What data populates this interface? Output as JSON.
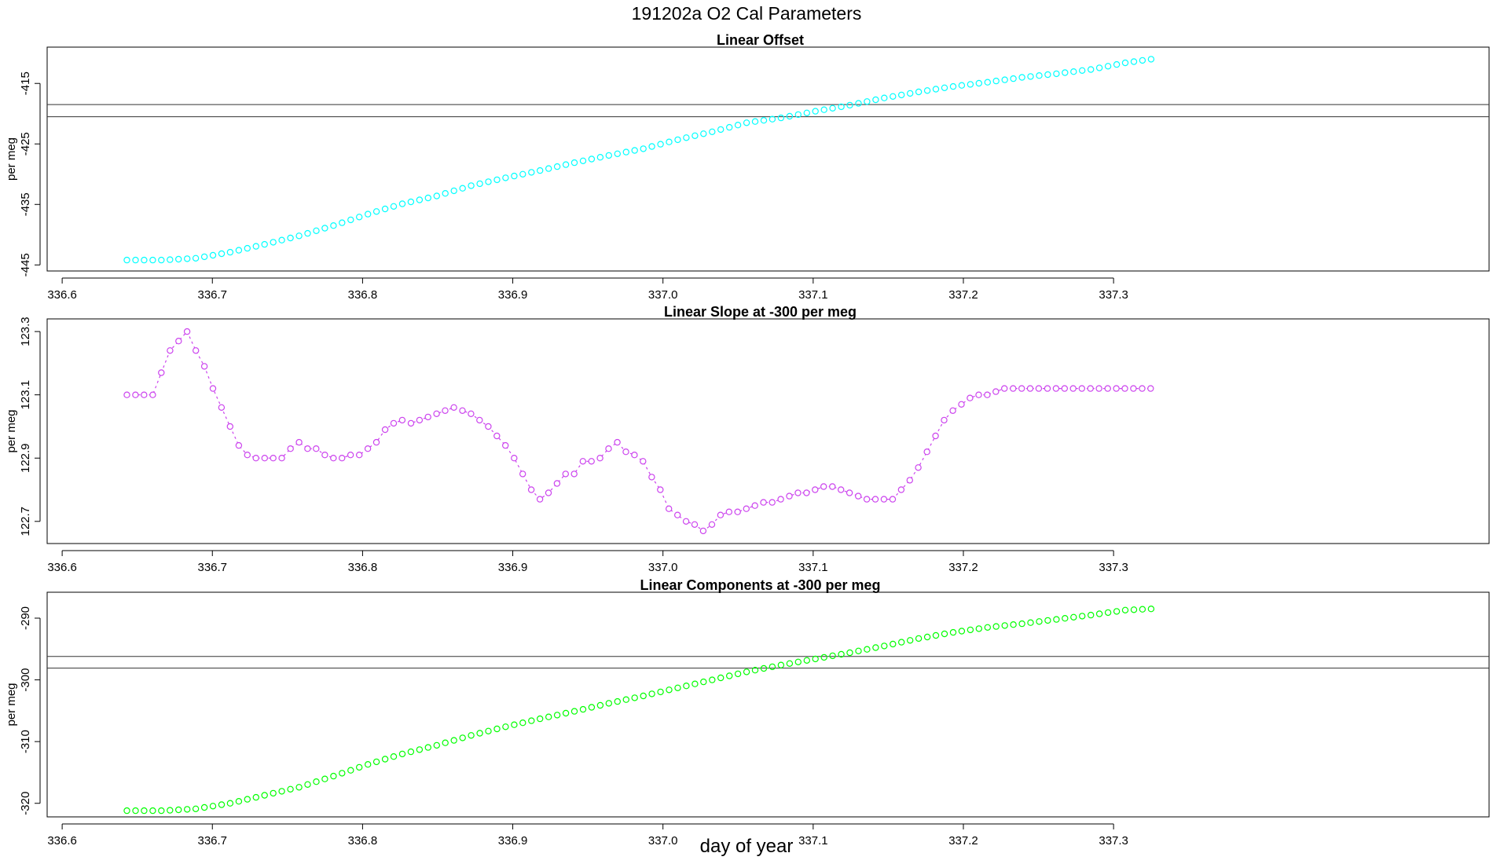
{
  "figure": {
    "title": "191202a   O2 Cal Parameters",
    "xlabel": "day of year"
  },
  "chart_data": [
    {
      "type": "scatter",
      "id": "offset",
      "title": "Linear Offset",
      "xlabel": "",
      "ylabel": "per meg",
      "color": "#00ffff",
      "connect_points": false,
      "xlim": [
        336.59,
        337.55
      ],
      "ylim": [
        -446,
        -409
      ],
      "xticks": [
        336.6,
        336.7,
        336.8,
        336.9,
        337.0,
        337.1,
        337.2,
        337.3
      ],
      "xtick_labels": [
        "336.6",
        "336.7",
        "336.8",
        "336.9",
        "337.0",
        "337.1",
        "337.2",
        "337.3"
      ],
      "yticks": [
        -445,
        -435,
        -425,
        -415
      ],
      "ytick_labels": [
        "-445",
        "-435",
        "-425",
        "-415"
      ],
      "hlines": [
        -418.5,
        -420.5
      ],
      "x_start": 336.6431,
      "x_step": 0.00573,
      "n_points": 120,
      "key_x": [
        0,
        4,
        8,
        12,
        16,
        20,
        24,
        28,
        32,
        36,
        40,
        44,
        48,
        52,
        56,
        60,
        64,
        68,
        72,
        76,
        80,
        84,
        88,
        92,
        96,
        100,
        104,
        108,
        112,
        116,
        119
      ],
      "key_y": [
        -444.2,
        -444.2,
        -443.9,
        -442.9,
        -441.6,
        -440.2,
        -438.5,
        -436.6,
        -434.9,
        -433.6,
        -431.9,
        -430.6,
        -429.4,
        -428.1,
        -426.9,
        -425.8,
        -424.3,
        -423.0,
        -421.5,
        -420.7,
        -419.6,
        -418.6,
        -417.4,
        -416.4,
        -415.5,
        -414.8,
        -414.0,
        -413.4,
        -412.7,
        -411.6,
        -411.0
      ]
    },
    {
      "type": "line",
      "id": "slope",
      "title": "Linear Slope at -300 per meg",
      "xlabel": "",
      "ylabel": "per meg",
      "color": "#cc44ee",
      "connect_points": true,
      "xlim": [
        336.59,
        337.55
      ],
      "ylim": [
        122.63,
        123.34
      ],
      "xticks": [
        336.6,
        336.7,
        336.8,
        336.9,
        337.0,
        337.1,
        337.2,
        337.3
      ],
      "xtick_labels": [
        "336.6",
        "336.7",
        "336.8",
        "336.9",
        "337.0",
        "337.1",
        "337.2",
        "337.3"
      ],
      "yticks": [
        122.7,
        122.9,
        123.1,
        123.3
      ],
      "ytick_labels": [
        "122.7",
        "122.9",
        "123.1",
        "123.3"
      ],
      "x": [
        336.6431,
        336.6488,
        336.6545,
        336.6603,
        336.666,
        336.6718,
        336.6775,
        336.6832,
        336.689,
        336.6947,
        336.7004,
        336.7061,
        336.7118,
        336.7176,
        336.7233,
        336.729,
        336.7348,
        336.7405,
        336.7462,
        336.752,
        336.7577,
        336.7634,
        336.7691,
        336.7749,
        336.7806,
        336.7863,
        336.792,
        336.7978,
        336.8035,
        336.8092,
        336.815,
        336.8207,
        336.8264,
        336.8322,
        336.8379,
        336.8436,
        336.8493,
        336.855,
        336.8608,
        336.8665,
        336.8722,
        336.8779,
        336.8837,
        336.8894,
        336.8951,
        336.9009,
        336.9066,
        336.9123,
        336.9181,
        336.9238,
        336.9295,
        336.9352,
        336.9409,
        336.9467,
        336.9524,
        336.9581,
        336.9638,
        336.9696,
        336.9753,
        336.981,
        336.9867,
        336.9925,
        336.9982,
        337.0039,
        337.0097,
        337.0154,
        337.0211,
        337.0268,
        337.0326,
        337.0383,
        337.044,
        337.0497,
        337.0555,
        337.0612,
        337.0669,
        337.0727,
        337.0784,
        337.0841,
        337.0899,
        337.0956,
        337.1013,
        337.107,
        337.1128,
        337.1185,
        337.1242,
        337.13,
        337.1357,
        337.1414,
        337.1471,
        337.1529,
        337.1586,
        337.1643,
        337.17,
        337.1758,
        337.1815,
        337.1872,
        337.193,
        337.1987,
        337.2044,
        337.2102,
        337.2159,
        337.2216,
        337.2273,
        337.2331,
        337.2388,
        337.2445,
        337.2502,
        337.256,
        337.2617,
        337.2674,
        337.2731,
        337.2789,
        337.2846,
        337.2903,
        337.2961,
        337.3018,
        337.3075,
        337.3132,
        337.319,
        337.3247
      ],
      "y": [
        123.1,
        123.1,
        123.1,
        123.1,
        123.17,
        123.24,
        123.27,
        123.3,
        123.24,
        123.19,
        123.12,
        123.06,
        123.0,
        122.94,
        122.91,
        122.9,
        122.9,
        122.9,
        122.9,
        122.93,
        122.95,
        122.93,
        122.93,
        122.91,
        122.9,
        122.9,
        122.91,
        122.91,
        122.93,
        122.95,
        122.99,
        123.01,
        123.02,
        123.01,
        123.02,
        123.03,
        123.04,
        123.05,
        123.06,
        123.05,
        123.04,
        123.02,
        123.0,
        122.97,
        122.94,
        122.9,
        122.85,
        122.8,
        122.77,
        122.79,
        122.82,
        122.85,
        122.85,
        122.89,
        122.89,
        122.9,
        122.93,
        122.95,
        122.92,
        122.91,
        122.89,
        122.84,
        122.8,
        122.74,
        122.72,
        122.7,
        122.69,
        122.67,
        122.69,
        122.72,
        122.73,
        122.73,
        122.74,
        122.75,
        122.76,
        122.76,
        122.77,
        122.78,
        122.79,
        122.79,
        122.8,
        122.81,
        122.81,
        122.8,
        122.79,
        122.78,
        122.77,
        122.77,
        122.77,
        122.77,
        122.8,
        122.83,
        122.87,
        122.92,
        122.97,
        123.02,
        123.05,
        123.07,
        123.09,
        123.1,
        123.1,
        123.11,
        123.12,
        123.12,
        123.12,
        123.12,
        123.12,
        123.12,
        123.12,
        123.12,
        123.12,
        123.12,
        123.12,
        123.12,
        123.12,
        123.12,
        123.12,
        123.12,
        123.12,
        123.12
      ]
    },
    {
      "type": "scatter",
      "id": "components",
      "title": "Linear Components at -300 per meg",
      "xlabel": "day of year",
      "ylabel": "per meg",
      "color": "#00ff00",
      "connect_points": false,
      "xlim": [
        336.59,
        337.55
      ],
      "ylim": [
        -322.2,
        -285.8
      ],
      "xticks": [
        336.6,
        336.7,
        336.8,
        336.9,
        337.0,
        337.1,
        337.2,
        337.3
      ],
      "xtick_labels": [
        "336.6",
        "336.7",
        "336.8",
        "336.9",
        "337.0",
        "337.1",
        "337.2",
        "337.3"
      ],
      "yticks": [
        -320,
        -310,
        -300,
        -290
      ],
      "ytick_labels": [
        "-320",
        "-310",
        "-300",
        "-290"
      ],
      "hlines": [
        -296.2,
        -298.1
      ],
      "x_start": 336.6431,
      "x_step": 0.00573,
      "n_points": 120,
      "key_x": [
        0,
        4,
        8,
        12,
        16,
        20,
        24,
        28,
        32,
        36,
        40,
        44,
        48,
        52,
        56,
        60,
        64,
        68,
        72,
        76,
        80,
        84,
        88,
        92,
        96,
        100,
        104,
        108,
        112,
        116,
        119
      ],
      "key_y": [
        -321.2,
        -321.2,
        -320.9,
        -320.0,
        -318.7,
        -317.4,
        -315.6,
        -313.7,
        -312.0,
        -310.6,
        -309.0,
        -307.6,
        -306.3,
        -305.1,
        -303.8,
        -302.6,
        -301.3,
        -300.0,
        -298.7,
        -297.6,
        -296.6,
        -295.6,
        -294.5,
        -293.3,
        -292.3,
        -291.5,
        -290.9,
        -290.2,
        -289.5,
        -288.7,
        -288.5
      ]
    }
  ]
}
